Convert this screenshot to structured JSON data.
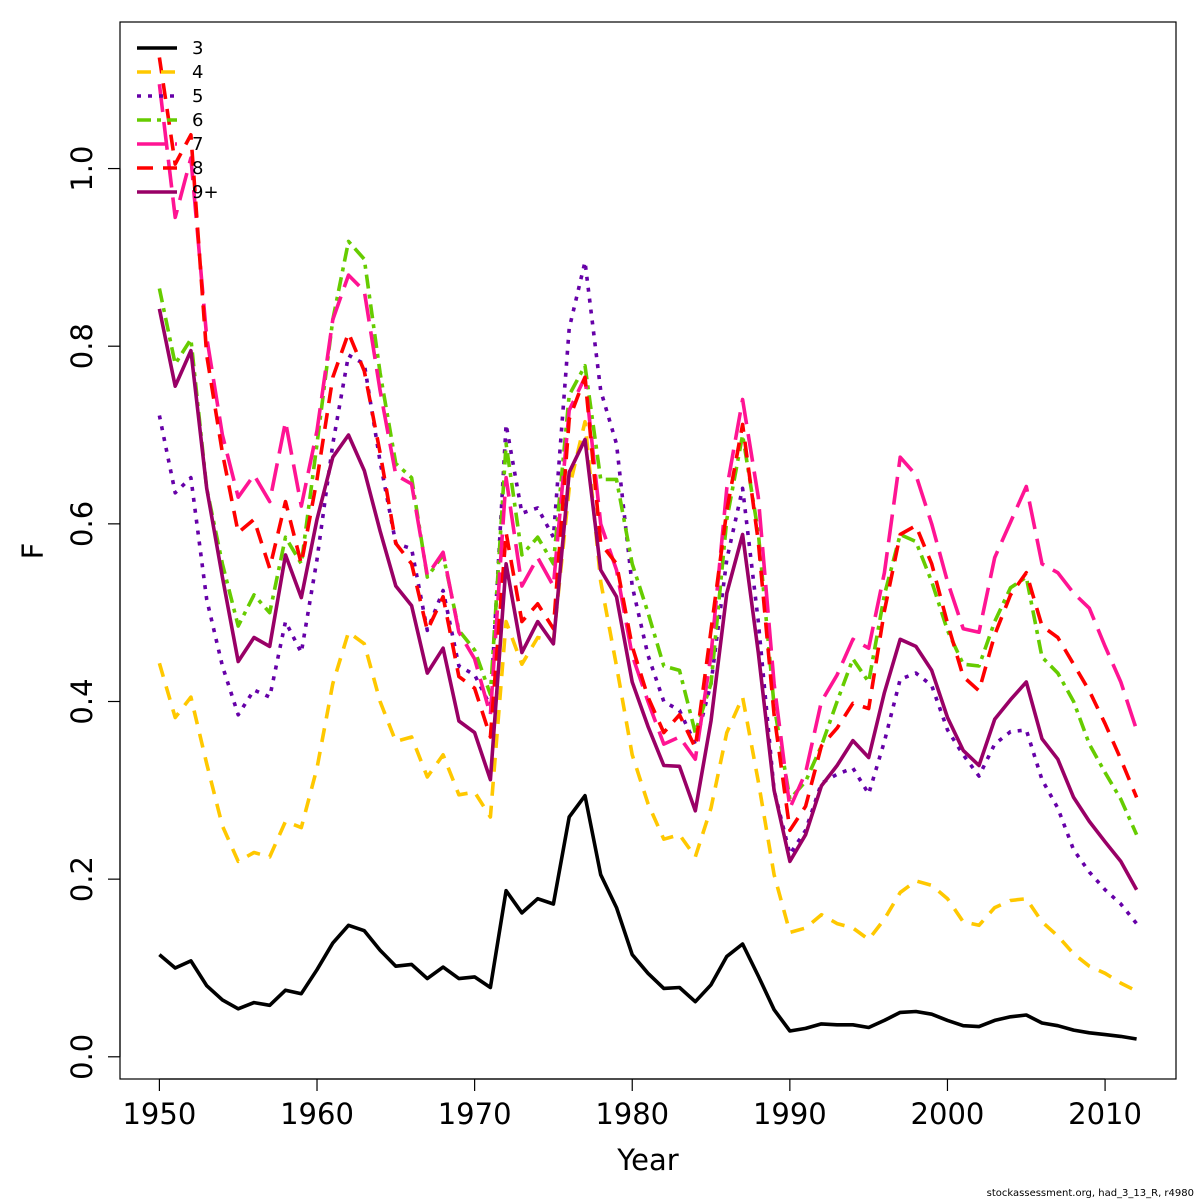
{
  "chart_data": {
    "type": "line",
    "title": "",
    "xlabel": "Year",
    "ylabel": "F",
    "xlim": [
      1947.5,
      2014.5
    ],
    "ylim": [
      -0.025,
      1.165
    ],
    "x_ticks": [
      1950,
      1960,
      1970,
      1980,
      1990,
      2000,
      2010
    ],
    "x_tick_labels": [
      "1950",
      "1960",
      "1970",
      "1980",
      "1990",
      "2000",
      "2010"
    ],
    "y_ticks": [
      0.0,
      0.2,
      0.4,
      0.6,
      0.8,
      1.0
    ],
    "y_tick_labels": [
      "0.0",
      "0.2",
      "0.4",
      "0.6",
      "0.8",
      "1.0"
    ],
    "grid": false,
    "legend_position": "top-left",
    "x": [
      1950,
      1951,
      1952,
      1953,
      1954,
      1955,
      1956,
      1957,
      1958,
      1959,
      1960,
      1961,
      1962,
      1963,
      1964,
      1965,
      1966,
      1967,
      1968,
      1969,
      1970,
      1971,
      1972,
      1973,
      1974,
      1975,
      1976,
      1977,
      1978,
      1979,
      1980,
      1981,
      1982,
      1983,
      1984,
      1985,
      1986,
      1987,
      1988,
      1989,
      1990,
      1991,
      1992,
      1993,
      1994,
      1995,
      1996,
      1997,
      1998,
      1999,
      2000,
      2001,
      2002,
      2003,
      2004,
      2005,
      2006,
      2007,
      2008,
      2009,
      2010,
      2011,
      2012
    ],
    "series": [
      {
        "name": "3",
        "color": "#000000",
        "dash": "",
        "values": [
          0.115,
          0.1,
          0.108,
          0.08,
          0.064,
          0.054,
          0.061,
          0.058,
          0.075,
          0.071,
          0.098,
          0.128,
          0.148,
          0.142,
          0.12,
          0.102,
          0.104,
          0.088,
          0.101,
          0.088,
          0.09,
          0.078,
          0.187,
          0.162,
          0.178,
          0.172,
          0.27,
          0.294,
          0.205,
          0.168,
          0.115,
          0.094,
          0.077,
          0.078,
          0.062,
          0.081,
          0.113,
          0.127,
          0.091,
          0.053,
          0.029,
          0.032,
          0.037,
          0.036,
          0.036,
          0.033,
          0.041,
          0.05,
          0.051,
          0.048,
          0.041,
          0.035,
          0.034,
          0.041,
          0.045,
          0.047,
          0.038,
          0.035,
          0.03,
          0.027,
          0.025,
          0.023,
          0.02
        ]
      },
      {
        "name": "4",
        "color": "#FFC800",
        "dash": "14 10",
        "values": [
          0.443,
          0.382,
          0.405,
          0.33,
          0.26,
          0.22,
          0.23,
          0.225,
          0.265,
          0.258,
          0.325,
          0.42,
          0.478,
          0.465,
          0.4,
          0.355,
          0.36,
          0.315,
          0.34,
          0.295,
          0.298,
          0.27,
          0.49,
          0.442,
          0.472,
          0.468,
          0.64,
          0.715,
          0.535,
          0.44,
          0.34,
          0.285,
          0.245,
          0.25,
          0.225,
          0.28,
          0.365,
          0.405,
          0.31,
          0.205,
          0.14,
          0.145,
          0.16,
          0.15,
          0.145,
          0.132,
          0.155,
          0.185,
          0.198,
          0.193,
          0.178,
          0.152,
          0.148,
          0.168,
          0.176,
          0.178,
          0.152,
          0.136,
          0.116,
          0.102,
          0.094,
          0.083,
          0.074
        ]
      },
      {
        "name": "5",
        "color": "#6600A8",
        "dash": "4 7",
        "values": [
          0.722,
          0.635,
          0.652,
          0.515,
          0.44,
          0.385,
          0.413,
          0.405,
          0.49,
          0.455,
          0.56,
          0.69,
          0.79,
          0.78,
          0.67,
          0.578,
          0.572,
          0.48,
          0.525,
          0.44,
          0.43,
          0.395,
          0.712,
          0.612,
          0.618,
          0.585,
          0.82,
          0.895,
          0.75,
          0.69,
          0.53,
          0.452,
          0.4,
          0.39,
          0.352,
          0.42,
          0.56,
          0.64,
          0.49,
          0.3,
          0.228,
          0.255,
          0.308,
          0.318,
          0.325,
          0.296,
          0.355,
          0.425,
          0.432,
          0.418,
          0.368,
          0.34,
          0.316,
          0.352,
          0.366,
          0.368,
          0.312,
          0.28,
          0.233,
          0.208,
          0.188,
          0.172,
          0.15
        ]
      },
      {
        "name": "6",
        "color": "#66CC00",
        "dash": "14 6 4 6",
        "values": [
          0.865,
          0.78,
          0.808,
          0.64,
          0.555,
          0.485,
          0.52,
          0.5,
          0.585,
          0.555,
          0.69,
          0.83,
          0.918,
          0.898,
          0.77,
          0.668,
          0.652,
          0.54,
          0.565,
          0.48,
          0.458,
          0.408,
          0.69,
          0.565,
          0.585,
          0.555,
          0.745,
          0.778,
          0.65,
          0.65,
          0.555,
          0.5,
          0.44,
          0.435,
          0.365,
          0.42,
          0.605,
          0.7,
          0.59,
          0.395,
          0.29,
          0.31,
          0.35,
          0.4,
          0.448,
          0.422,
          0.52,
          0.588,
          0.58,
          0.535,
          0.48,
          0.442,
          0.44,
          0.49,
          0.528,
          0.54,
          0.45,
          0.432,
          0.4,
          0.352,
          0.32,
          0.29,
          0.25
        ]
      },
      {
        "name": "7",
        "color": "#FF1493",
        "dash": "28 10",
        "values": [
          1.095,
          0.945,
          1.012,
          0.81,
          0.7,
          0.63,
          0.655,
          0.625,
          0.715,
          0.62,
          0.705,
          0.83,
          0.88,
          0.862,
          0.75,
          0.655,
          0.645,
          0.542,
          0.568,
          0.478,
          0.448,
          0.385,
          0.652,
          0.53,
          0.562,
          0.53,
          0.728,
          0.765,
          0.6,
          0.548,
          0.452,
          0.4,
          0.352,
          0.36,
          0.335,
          0.452,
          0.64,
          0.74,
          0.63,
          0.42,
          0.28,
          0.32,
          0.4,
          0.43,
          0.47,
          0.46,
          0.545,
          0.675,
          0.655,
          0.6,
          0.535,
          0.482,
          0.478,
          0.562,
          0.602,
          0.642,
          0.555,
          0.545,
          0.522,
          0.505,
          0.462,
          0.422,
          0.368
        ]
      },
      {
        "name": "8",
        "color": "#FF0000",
        "dash": "16 10",
        "values": [
          1.125,
          1.005,
          1.038,
          0.79,
          0.68,
          0.59,
          0.605,
          0.55,
          0.625,
          0.555,
          0.65,
          0.765,
          0.815,
          0.772,
          0.68,
          0.578,
          0.555,
          0.48,
          0.518,
          0.428,
          0.415,
          0.36,
          0.59,
          0.49,
          0.51,
          0.482,
          0.718,
          0.765,
          0.578,
          0.555,
          0.462,
          0.405,
          0.365,
          0.385,
          0.348,
          0.48,
          0.615,
          0.712,
          0.58,
          0.385,
          0.255,
          0.282,
          0.35,
          0.37,
          0.398,
          0.392,
          0.502,
          0.588,
          0.598,
          0.555,
          0.488,
          0.428,
          0.412,
          0.475,
          0.52,
          0.545,
          0.485,
          0.472,
          0.442,
          0.412,
          0.375,
          0.335,
          0.292
        ]
      },
      {
        "name": "9+",
        "color": "#990066",
        "dash": "",
        "values": [
          0.842,
          0.755,
          0.795,
          0.64,
          0.54,
          0.445,
          0.472,
          0.462,
          0.565,
          0.517,
          0.605,
          0.675,
          0.7,
          0.66,
          0.592,
          0.53,
          0.508,
          0.432,
          0.46,
          0.378,
          0.365,
          0.312,
          0.555,
          0.455,
          0.49,
          0.465,
          0.658,
          0.695,
          0.548,
          0.518,
          0.422,
          0.372,
          0.328,
          0.327,
          0.277,
          0.378,
          0.522,
          0.588,
          0.455,
          0.3,
          0.22,
          0.25,
          0.305,
          0.328,
          0.356,
          0.337,
          0.41,
          0.47,
          0.462,
          0.435,
          0.382,
          0.345,
          0.328,
          0.38,
          0.402,
          0.422,
          0.358,
          0.335,
          0.292,
          0.265,
          0.242,
          0.22,
          0.188
        ]
      }
    ]
  },
  "footer": {
    "credit": "stockassessment.org, had_3_13_R, r4980"
  }
}
